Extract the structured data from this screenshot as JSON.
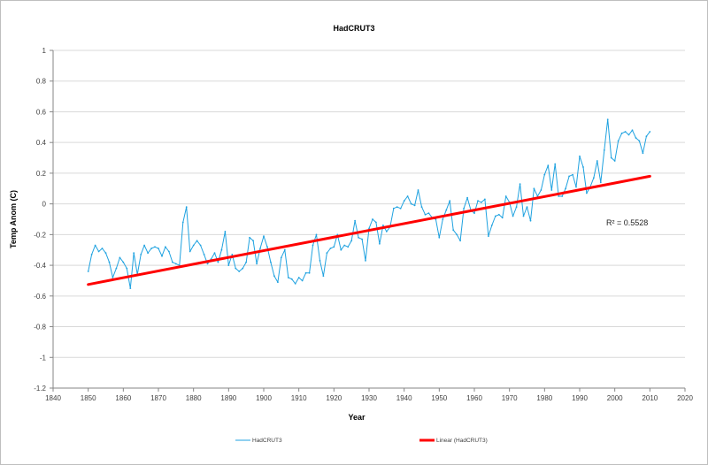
{
  "chart_data": {
    "type": "line",
    "title": "HadCRUT3",
    "xlabel": "Year",
    "ylabel": "Temp Anom (C)",
    "xlim": [
      1840,
      2020
    ],
    "ylim": [
      -1.2,
      1
    ],
    "x_ticks": [
      "1840",
      "1850",
      "1860",
      "1870",
      "1880",
      "1890",
      "1900",
      "1910",
      "1920",
      "1930",
      "1940",
      "1950",
      "1960",
      "1970",
      "1980",
      "1990",
      "2000",
      "2010",
      "2020"
    ],
    "y_ticks": [
      "1",
      "0.8",
      "0.6",
      "0.4",
      "0.2",
      "0",
      "-0.2",
      "-0.4",
      "-0.6",
      "-0.8",
      "-1",
      "-1.2"
    ],
    "grid": "horizontal",
    "legend_position": "bottom",
    "series": [
      {
        "name": "HadCRUT3",
        "color": "#1fa2e0",
        "x": [
          1850,
          1851,
          1852,
          1853,
          1854,
          1855,
          1856,
          1857,
          1858,
          1859,
          1860,
          1861,
          1862,
          1863,
          1864,
          1865,
          1866,
          1867,
          1868,
          1869,
          1870,
          1871,
          1872,
          1873,
          1874,
          1875,
          1876,
          1877,
          1878,
          1879,
          1880,
          1881,
          1882,
          1883,
          1884,
          1885,
          1886,
          1887,
          1888,
          1889,
          1890,
          1891,
          1892,
          1893,
          1894,
          1895,
          1896,
          1897,
          1898,
          1899,
          1900,
          1901,
          1902,
          1903,
          1904,
          1905,
          1906,
          1907,
          1908,
          1909,
          1910,
          1911,
          1912,
          1913,
          1914,
          1915,
          1916,
          1917,
          1918,
          1919,
          1920,
          1921,
          1922,
          1923,
          1924,
          1925,
          1926,
          1927,
          1928,
          1929,
          1930,
          1931,
          1932,
          1933,
          1934,
          1935,
          1936,
          1937,
          1938,
          1939,
          1940,
          1941,
          1942,
          1943,
          1944,
          1945,
          1946,
          1947,
          1948,
          1949,
          1950,
          1951,
          1952,
          1953,
          1954,
          1955,
          1956,
          1957,
          1958,
          1959,
          1960,
          1961,
          1962,
          1963,
          1964,
          1965,
          1966,
          1967,
          1968,
          1969,
          1970,
          1971,
          1972,
          1973,
          1974,
          1975,
          1976,
          1977,
          1978,
          1979,
          1980,
          1981,
          1982,
          1983,
          1984,
          1985,
          1986,
          1987,
          1988,
          1989,
          1990,
          1991,
          1992,
          1993,
          1994,
          1995,
          1996,
          1997,
          1998,
          1999,
          2000,
          2001,
          2002,
          2003,
          2004,
          2005,
          2006,
          2007,
          2008,
          2009,
          2010
        ],
        "values": [
          -0.44,
          -0.33,
          -0.27,
          -0.31,
          -0.29,
          -0.32,
          -0.38,
          -0.48,
          -0.42,
          -0.35,
          -0.38,
          -0.42,
          -0.55,
          -0.32,
          -0.46,
          -0.33,
          -0.27,
          -0.32,
          -0.29,
          -0.28,
          -0.29,
          -0.34,
          -0.28,
          -0.31,
          -0.38,
          -0.39,
          -0.4,
          -0.12,
          -0.02,
          -0.31,
          -0.27,
          -0.24,
          -0.27,
          -0.33,
          -0.39,
          -0.36,
          -0.32,
          -0.38,
          -0.3,
          -0.18,
          -0.4,
          -0.33,
          -0.42,
          -0.44,
          -0.42,
          -0.38,
          -0.22,
          -0.24,
          -0.39,
          -0.29,
          -0.21,
          -0.28,
          -0.38,
          -0.47,
          -0.51,
          -0.35,
          -0.3,
          -0.48,
          -0.49,
          -0.52,
          -0.48,
          -0.5,
          -0.45,
          -0.45,
          -0.27,
          -0.2,
          -0.37,
          -0.47,
          -0.32,
          -0.29,
          -0.28,
          -0.2,
          -0.3,
          -0.27,
          -0.28,
          -0.24,
          -0.11,
          -0.22,
          -0.23,
          -0.37,
          -0.16,
          -0.1,
          -0.12,
          -0.26,
          -0.14,
          -0.18,
          -0.15,
          -0.03,
          -0.02,
          -0.03,
          0.02,
          0.05,
          0.0,
          -0.01,
          0.09,
          -0.02,
          -0.07,
          -0.06,
          -0.09,
          -0.1,
          -0.22,
          -0.1,
          -0.04,
          0.02,
          -0.17,
          -0.2,
          -0.24,
          -0.03,
          0.04,
          -0.04,
          -0.06,
          0.02,
          0.01,
          0.03,
          -0.21,
          -0.14,
          -0.08,
          -0.07,
          -0.09,
          0.05,
          0.01,
          -0.08,
          -0.02,
          0.13,
          -0.08,
          -0.02,
          -0.11,
          0.1,
          0.05,
          0.09,
          0.19,
          0.25,
          0.09,
          0.26,
          0.05,
          0.05,
          0.1,
          0.18,
          0.19,
          0.11,
          0.31,
          0.24,
          0.07,
          0.11,
          0.17,
          0.28,
          0.14,
          0.35,
          0.55,
          0.3,
          0.28,
          0.41,
          0.46,
          0.47,
          0.45,
          0.48,
          0.43,
          0.41,
          0.33,
          0.44,
          0.47
        ]
      },
      {
        "name": "Linear (HadCRUT3)",
        "color": "#ff0000",
        "x": [
          1850,
          2010
        ],
        "values": [
          -0.525,
          0.18
        ]
      }
    ],
    "annotations": [
      {
        "text": "R² = 0.5528",
        "x": 1999,
        "y": -0.12
      }
    ]
  }
}
